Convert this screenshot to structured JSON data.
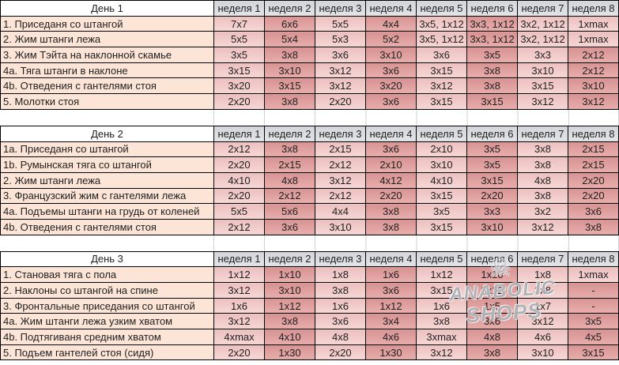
{
  "colors": {
    "exercise_cell": "#FCE4D6",
    "pink_light": "#F2CDCC",
    "pink_dark": "#DD9E9D",
    "week_header_gray": "#DBDDDE",
    "grid_border": "#000000"
  },
  "week_headers": [
    "неделя 1",
    "неделя 2",
    "неделя 3",
    "неделя 4",
    "неделя 5",
    "неделя 6",
    "неделя 7",
    "неделя 8"
  ],
  "sections": [
    {
      "title": "День 1",
      "rows": [
        {
          "exercise": "1. Приседаня со штангой",
          "values": [
            "7x7",
            "6x6",
            "5x5",
            "4x4",
            "3x5, 1x12",
            "3x3, 1x12",
            "3x2, 1x12",
            "1xmax"
          ],
          "light_override": [
            8
          ]
        },
        {
          "exercise": "2. Жим штанги лежа",
          "values": [
            "5x5",
            "5x4",
            "5x3",
            "5x2",
            "3x5, 1x12",
            "3x3, 1x12",
            "3x2, 1x12",
            "1xmax"
          ],
          "light_override": [
            8
          ]
        },
        {
          "exercise": "3. Жим Тэйта на наклонной скамье",
          "values": [
            "3x5",
            "3x8",
            "3x6",
            "3x10",
            "3x6",
            "3x5",
            "3x3",
            "2x12"
          ]
        },
        {
          "exercise": "4a. Тяга штанги в наклоне",
          "values": [
            "3x15",
            "3x10",
            "3x12",
            "3x6",
            "3x15",
            "3x8",
            "3x10",
            "2x12"
          ]
        },
        {
          "exercise": "4b. Отведения с гантелями стоя",
          "values": [
            "3x20",
            "3x15",
            "3x12",
            "3x20",
            "3x12",
            "3x8",
            "3x15",
            "3x10"
          ]
        },
        {
          "exercise": "5. Молотки стоя",
          "values": [
            "2x20",
            "3x8",
            "2x20",
            "3x6",
            "3x15",
            "3x15",
            "3x12",
            "3x12"
          ]
        }
      ]
    },
    {
      "title": "День 2",
      "rows": [
        {
          "exercise": "1a. Приседаня со штангой",
          "values": [
            "2x12",
            "3x8",
            "2x15",
            "3x6",
            "2x10",
            "3x5",
            "3x8",
            "2x15"
          ]
        },
        {
          "exercise": "1b. Румынская тяга со штангой",
          "values": [
            "2x20",
            "2x15",
            "2x12",
            "2x10",
            "3x10",
            "3x5",
            "3x8",
            "2x15"
          ]
        },
        {
          "exercise": "2. Жим штанги лежа",
          "values": [
            "4x10",
            "4x8",
            "3x12",
            "4x12",
            "4x10",
            "3x15",
            "4x8",
            "2x20"
          ],
          "selected": true
        },
        {
          "exercise": "3. Французский жим с гантелями лежа",
          "values": [
            "2x20",
            "2x12",
            "2x12",
            "2x20",
            "3x15",
            "2x20",
            "3x8",
            "2x20"
          ]
        },
        {
          "exercise": "4a. Подъемы штанги на грудь от коленей",
          "values": [
            "5x5",
            "5x6",
            "4x4",
            "3x8",
            "3x5",
            "3x3",
            "3x2",
            "3x6"
          ]
        },
        {
          "exercise": "4b. Отведения с гантелями стоя",
          "values": [
            "2x12",
            "3x6",
            "3x10",
            "3x8",
            "3x15",
            "3x10",
            "3x12",
            "3x8"
          ]
        }
      ]
    },
    {
      "title": "День 3",
      "rows": [
        {
          "exercise": "1. Становая тяга с пола",
          "values": [
            "1x12",
            "1x10",
            "1x8",
            "1x6",
            "1x12",
            "1x10",
            "1x8",
            "1xmax"
          ],
          "light_override": [
            8
          ]
        },
        {
          "exercise": "2. Наклоны со штангой на спине",
          "values": [
            "3x12",
            "3x10",
            "3x8",
            "3x6",
            "3x15",
            "3x12",
            "3x8",
            "-"
          ]
        },
        {
          "exercise": "3. Фронтальные приседания со штангой",
          "values": [
            "1x6",
            "1x12",
            "1x6",
            "1x12",
            "1x6",
            "1x5",
            "1x7",
            "-"
          ]
        },
        {
          "exercise": "4a. Жим штанги лежа узким хватом",
          "values": [
            "3x12",
            "3x8",
            "3x6",
            "3x4",
            "3x8",
            "3x6",
            "3x12",
            "3x5"
          ]
        },
        {
          "exercise": "4b. Подтягиваня средним хватом",
          "values": [
            "4xmax",
            "4x10",
            "4x8",
            "4x6",
            "3xmax",
            "4x8",
            "4x6",
            "4x5"
          ]
        },
        {
          "exercise": "5. Подъем гантелей стоя (сидя)",
          "values": [
            "2x20",
            "1x30",
            "2x20",
            "1x30",
            "3x12",
            "3x8",
            "3x10",
            "3x15"
          ]
        }
      ]
    }
  ],
  "watermark": {
    "skull": "☠",
    "line1": "ANABOLIC",
    "line2": "SHOPS"
  }
}
